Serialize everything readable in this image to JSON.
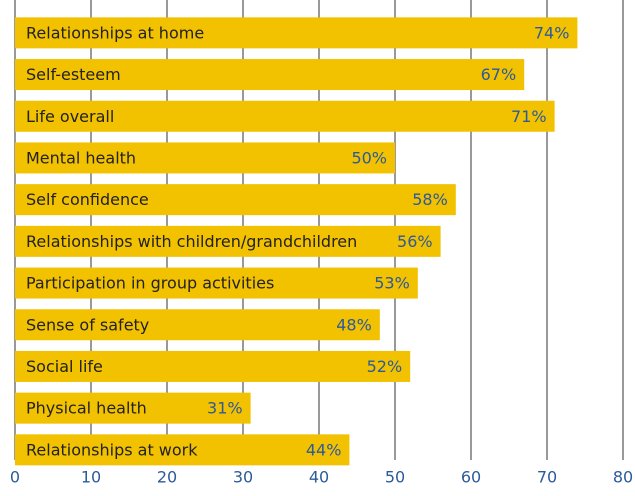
{
  "chart_data": {
    "type": "barh",
    "categories": [
      "Relationships at home",
      "Self-esteem",
      "Life overall",
      "Mental health",
      "Self confidence",
      "Relationships with children/grandchildren",
      "Participation in group activities",
      "Sense of safety",
      "Social life",
      "Physical health",
      "Relationships at work"
    ],
    "values": [
      74,
      67,
      71,
      50,
      58,
      56,
      53,
      48,
      52,
      31,
      44
    ],
    "value_labels": [
      "74%",
      "67%",
      "71%",
      "50%",
      "58%",
      "56%",
      "53%",
      "48%",
      "52%",
      "31%",
      "44%"
    ],
    "color": "#f2c100",
    "xlim": [
      0,
      80
    ],
    "xticks": [
      0,
      10,
      20,
      30,
      40,
      50,
      60,
      70,
      80
    ],
    "grid": true
  }
}
